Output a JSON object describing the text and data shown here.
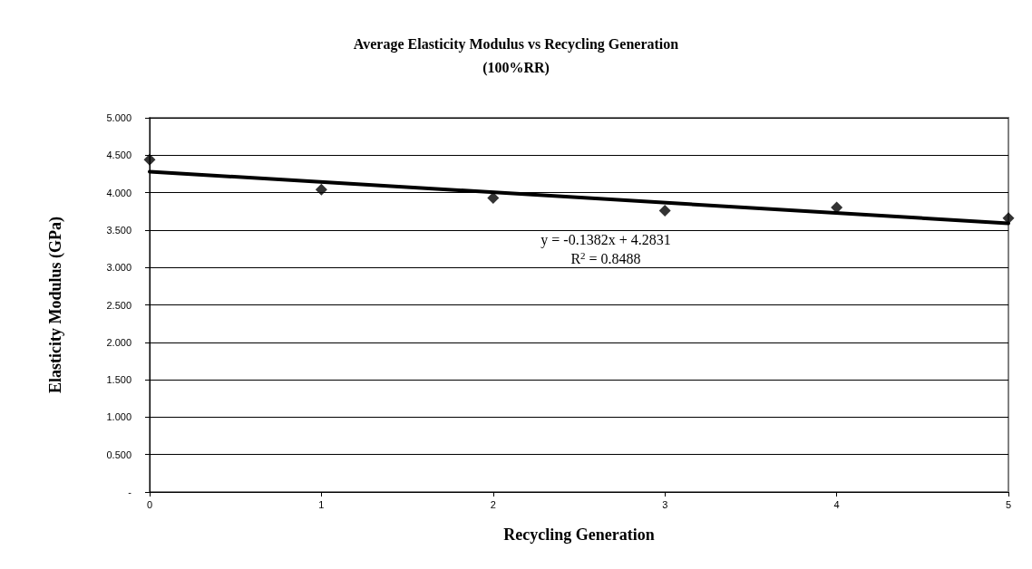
{
  "chart_data": {
    "type": "scatter",
    "title": "Average Elasticity Modulus vs Recycling Generation\n(100%RR)",
    "xlabel": "Recycling Generation",
    "ylabel": "Elasticity Modulus (GPa)",
    "series": [
      {
        "type": "scatter",
        "x": [
          0,
          1,
          2,
          3,
          4,
          5
        ],
        "values": [
          4.44,
          4.04,
          3.93,
          3.76,
          3.8,
          3.66
        ],
        "color": "#000000",
        "marker": "diamond"
      },
      {
        "type": "line",
        "x": [
          0,
          5
        ],
        "values": [
          4.28,
          3.59
        ],
        "color": "#000000",
        "marker": "none"
      }
    ],
    "xlim": [
      0,
      5
    ],
    "xticks": [
      0,
      1,
      2,
      3,
      4,
      5
    ],
    "ylim": [
      0,
      5
    ],
    "yticks": [
      {
        "value": 0,
        "label": "-"
      },
      {
        "value": 0.5,
        "label": "0.500"
      },
      {
        "value": 1,
        "label": "1.000"
      },
      {
        "value": 1.5,
        "label": "1.500"
      },
      {
        "value": 2,
        "label": "2.000"
      },
      {
        "value": 2.5,
        "label": "2.500"
      },
      {
        "value": 3,
        "label": "3.000"
      },
      {
        "value": 3.5,
        "label": "3.500"
      },
      {
        "value": 4,
        "label": "4.000"
      },
      {
        "value": 4.5,
        "label": "4.500"
      },
      {
        "value": 5,
        "label": "5.000"
      }
    ],
    "grid": "y",
    "annotations": [
      "y = -0.1382x + 4.2831",
      "R$^{2}$ = 0.8488"
    ]
  }
}
